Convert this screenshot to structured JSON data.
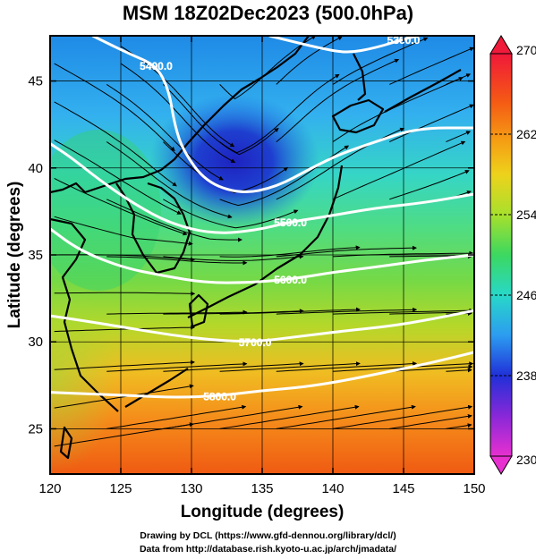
{
  "title": "MSM 18Z02Dec2023 (500.0hPa)",
  "x_axis": {
    "label": "Longitude (degrees)",
    "ticks": [
      "120",
      "125",
      "130",
      "135",
      "140",
      "145",
      "150"
    ],
    "range": [
      120,
      150
    ]
  },
  "y_axis": {
    "label": "Latitude  (degrees)",
    "ticks": [
      "25",
      "30",
      "35",
      "40",
      "45"
    ],
    "range": [
      22.4,
      47.6
    ]
  },
  "colorbar": {
    "ticks": [
      "270",
      "262",
      "254",
      "246",
      "238",
      "230"
    ],
    "range": [
      230,
      270
    ]
  },
  "contour_labels": [
    "5300.0",
    "5400.0",
    "5500.0",
    "5600.0",
    "5700.0",
    "5800.0"
  ],
  "footer": {
    "line1": "Drawing by DCL (https://www.gfd-dennou.org/library/dcl/)",
    "line2": "Data from http://database.rish.kyoto-u.ac.jp/arch/jmadata/"
  },
  "chart_data": {
    "type": "heatmap",
    "field": "temperature (K) shaded, geopotential height (m) contours, wind streamlines",
    "xlim": [
      120,
      150
    ],
    "ylim": [
      22.4,
      47.6
    ],
    "color_range": [
      230,
      270
    ],
    "contours": [
      {
        "value": "5300.0",
        "points": [
          [
            135.5,
            47.6
          ],
          [
            137,
            47.3
          ],
          [
            139,
            46.9
          ],
          [
            141,
            46.6
          ],
          [
            143,
            46.9
          ],
          [
            145,
            47.4
          ],
          [
            146,
            47.6
          ]
        ]
      },
      {
        "value": "5400.0",
        "points": [
          [
            123,
            47.6
          ],
          [
            125.5,
            46.6
          ],
          [
            127.5,
            45.9
          ],
          [
            128.4,
            44.5
          ],
          [
            128.8,
            42.5
          ],
          [
            129.4,
            41
          ],
          [
            131,
            39.2
          ],
          [
            133.5,
            38.5
          ],
          [
            136,
            38.9
          ],
          [
            138.5,
            40
          ],
          [
            140.5,
            40.8
          ],
          [
            143,
            41.5
          ],
          [
            146,
            42.3
          ],
          [
            150,
            42.3
          ]
        ]
      },
      {
        "value": "5500.0",
        "points": [
          [
            120,
            41.4
          ],
          [
            121.5,
            40.6
          ],
          [
            123.5,
            39.3
          ],
          [
            126,
            37.9
          ],
          [
            128.5,
            36.8
          ],
          [
            131.5,
            36.2
          ],
          [
            134.5,
            36.4
          ],
          [
            137,
            36.9
          ],
          [
            139.5,
            37.2
          ],
          [
            143,
            37.7
          ],
          [
            146.5,
            38
          ],
          [
            150,
            38.5
          ]
        ]
      },
      {
        "value": "5600.0",
        "points": [
          [
            120,
            36.5
          ],
          [
            122,
            35.3
          ],
          [
            125,
            34.3
          ],
          [
            128,
            33.8
          ],
          [
            131,
            33.4
          ],
          [
            134,
            33.4
          ],
          [
            137,
            33.6
          ],
          [
            140,
            34
          ],
          [
            143,
            34.3
          ],
          [
            146.5,
            34.7
          ],
          [
            150,
            35
          ]
        ]
      },
      {
        "value": "5700.0",
        "points": [
          [
            120,
            31.5
          ],
          [
            122.5,
            31.2
          ],
          [
            125.5,
            30.8
          ],
          [
            128.5,
            30.4
          ],
          [
            131.5,
            30.1
          ],
          [
            134.5,
            30
          ],
          [
            137.5,
            30.3
          ],
          [
            140.5,
            30.6
          ],
          [
            144,
            30.9
          ],
          [
            147,
            31.3
          ],
          [
            150,
            31.8
          ]
        ]
      },
      {
        "value": "5800.0",
        "points": [
          [
            120,
            27.1
          ],
          [
            123,
            27
          ],
          [
            126,
            26.9
          ],
          [
            129,
            26.8
          ],
          [
            132,
            26.9
          ],
          [
            135,
            27.2
          ],
          [
            138,
            27.4
          ],
          [
            141,
            27.8
          ],
          [
            144,
            28.3
          ],
          [
            147,
            28.8
          ],
          [
            150,
            29.4
          ]
        ]
      }
    ],
    "colorbar": {
      "vmin": 230,
      "vmax": 270,
      "ticks": [
        270,
        262,
        254,
        246,
        238,
        230
      ]
    }
  }
}
